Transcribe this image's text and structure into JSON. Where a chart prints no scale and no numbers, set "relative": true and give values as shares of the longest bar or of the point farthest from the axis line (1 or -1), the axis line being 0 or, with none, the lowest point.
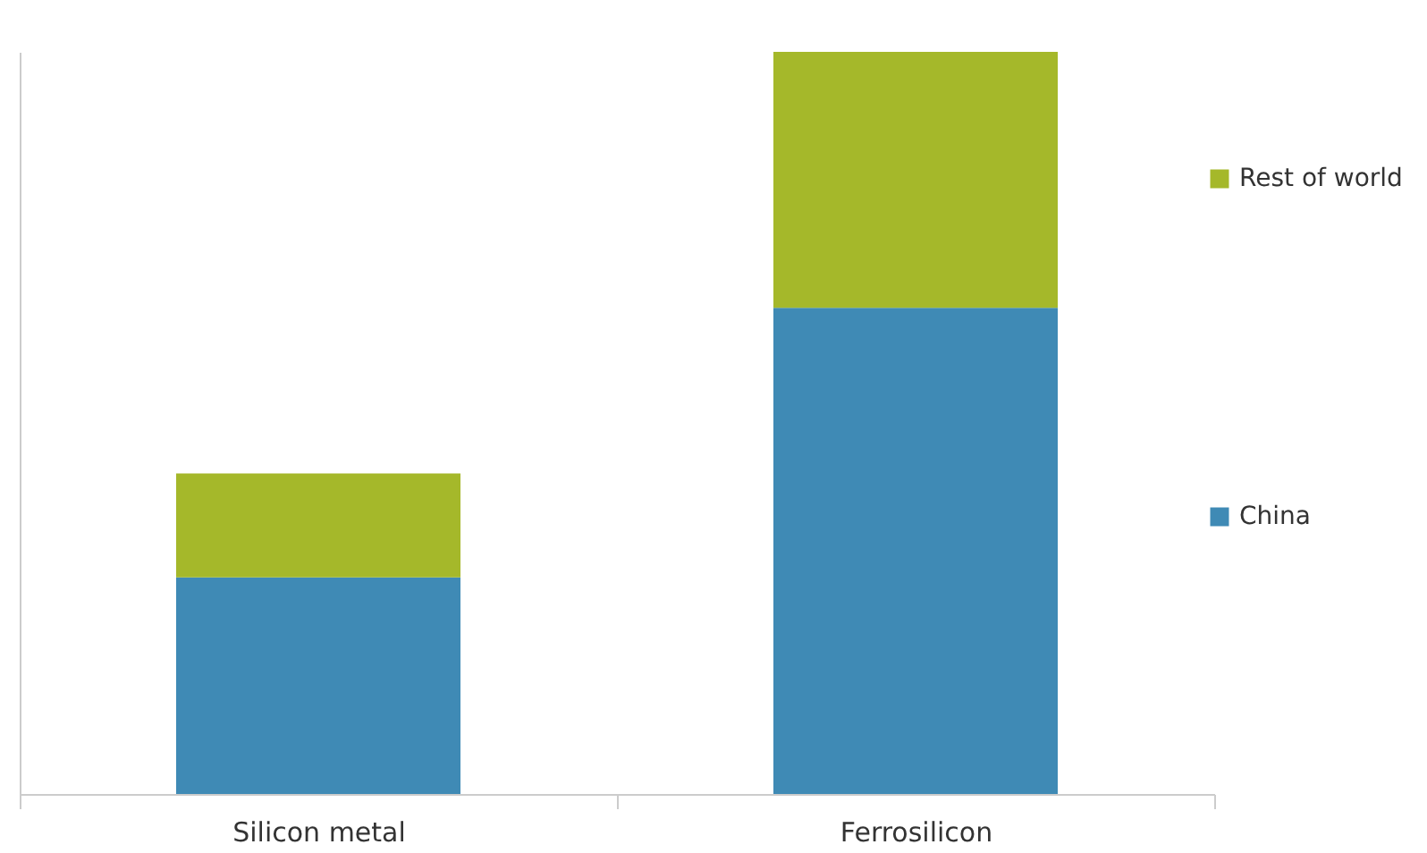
{
  "chart_data": {
    "type": "bar",
    "stacked": true,
    "relative": true,
    "categories": [
      "Silicon metal",
      "Ferrosilicon"
    ],
    "series": [
      {
        "name": "China",
        "color": "#3f8ab5",
        "values": [
          0.292,
          0.655
        ]
      },
      {
        "name": "Rest of world",
        "color": "#a5b82a",
        "values": [
          0.14,
          0.345
        ]
      }
    ],
    "legend": "right",
    "grid": false
  }
}
